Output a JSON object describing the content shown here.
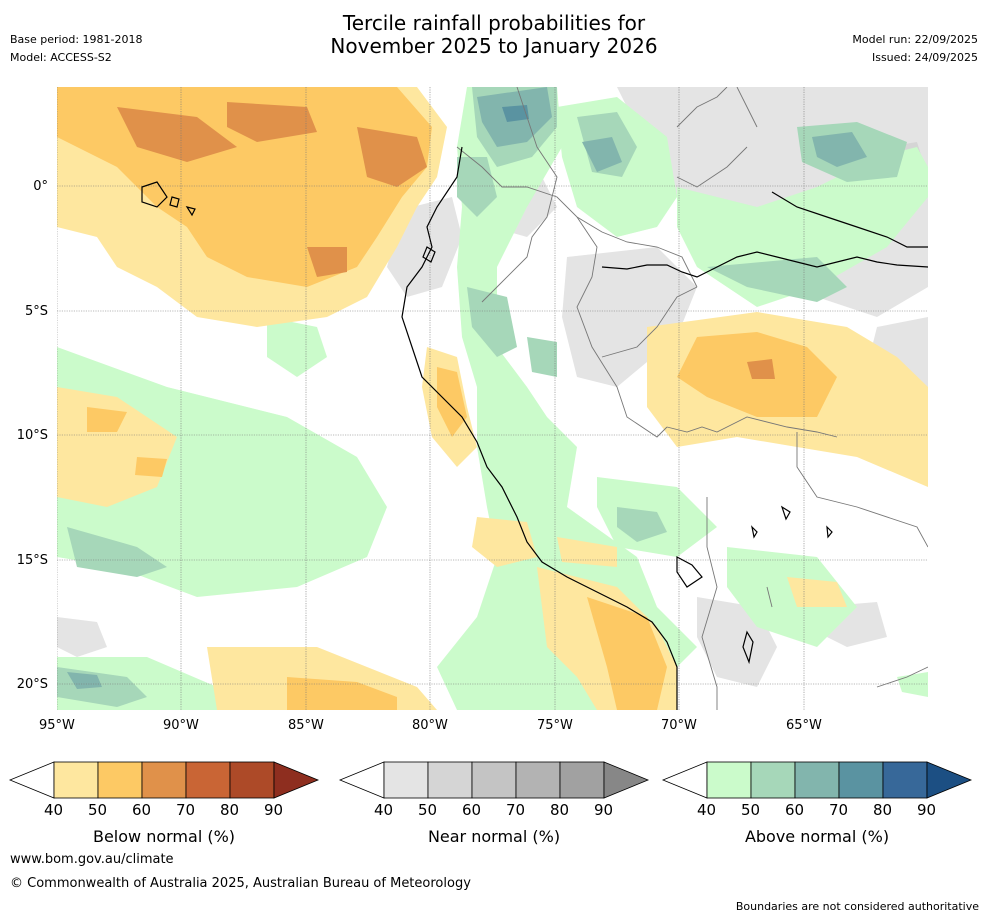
{
  "header": {
    "title_line1": "Tercile rainfall probabilities for",
    "title_line2": "November 2025 to January 2026",
    "base_period": "Base period: 1981-2018",
    "model": "Model: ACCESS-S2",
    "model_run": "Model run: 22/09/2025",
    "issued": "Issued: 24/09/2025"
  },
  "map": {
    "lon_ticks": [
      "95°W",
      "90°W",
      "85°W",
      "80°W",
      "75°W",
      "70°W",
      "65°W"
    ],
    "lat_ticks": [
      "0°",
      "5°S",
      "10°S",
      "15°S",
      "20°S"
    ]
  },
  "colorbars": [
    {
      "label": "Below normal (%)",
      "ticks": [
        "40",
        "50",
        "60",
        "70",
        "80",
        "90"
      ],
      "colors": [
        "#ffffff",
        "#fee79f",
        "#fdc964",
        "#e0914a",
        "#c96535",
        "#ad4a28",
        "#8e2e1f"
      ]
    },
    {
      "label": "Near normal (%)",
      "ticks": [
        "40",
        "50",
        "60",
        "70",
        "80",
        "90"
      ],
      "colors": [
        "#ffffff",
        "#e4e4e4",
        "#d5d5d5",
        "#c4c4c4",
        "#b3b3b3",
        "#a1a1a1",
        "#878787"
      ]
    },
    {
      "label": "Above normal (%)",
      "ticks": [
        "40",
        "50",
        "60",
        "70",
        "80",
        "90"
      ],
      "colors": [
        "#ffffff",
        "#cbfbcb",
        "#a6d7b9",
        "#82b5ad",
        "#5a93a1",
        "#376899",
        "#1c4f83"
      ]
    }
  ],
  "footer": {
    "website": "www.bom.gov.au/climate",
    "copyright": "© Commonwealth of Australia 2025, Australian Bureau of Meteorology",
    "disclaimer": "Boundaries are not considered authoritative"
  }
}
